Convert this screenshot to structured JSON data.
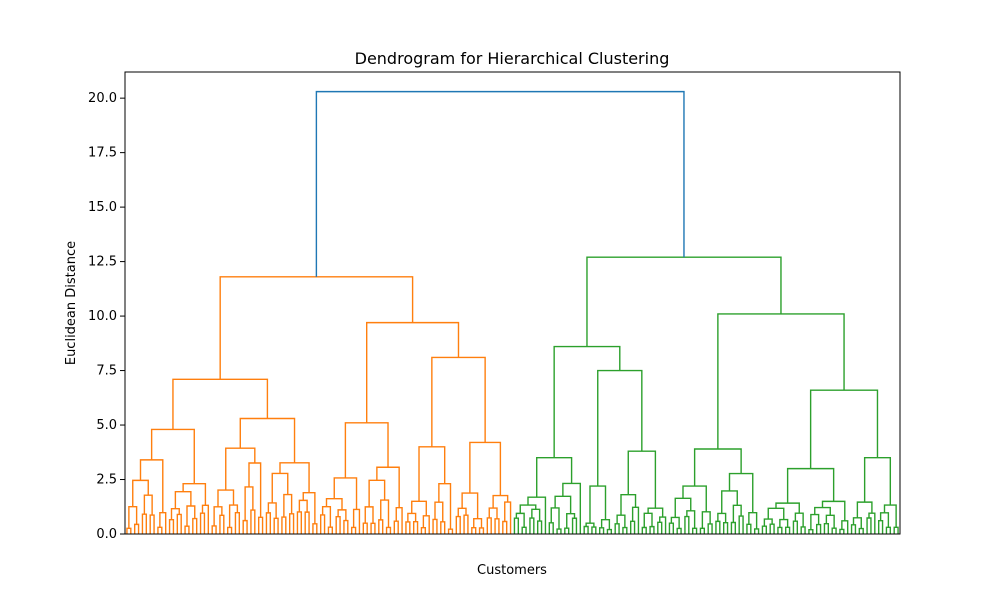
{
  "chart_data": {
    "type": "dendrogram",
    "title": "Dendrogram for Hierarchical Clustering",
    "xlabel": "Customers",
    "ylabel": "Euclidean Distance",
    "ylim": [
      0,
      21.2
    ],
    "yticks": [
      0.0,
      2.5,
      5.0,
      7.5,
      10.0,
      12.5,
      15.0,
      17.5,
      20.0
    ],
    "grid": false,
    "leaf_count": 200,
    "colors": {
      "top_link": "#1f77b4",
      "cluster_1": "#ff7f0e",
      "cluster_2": "#2ca02c"
    },
    "clusters": [
      {
        "name": "cluster_1",
        "leaf_range": [
          0,
          99
        ],
        "merge_height": 11.8,
        "groups": [
          {
            "leaf_range": [
              0,
              49
            ],
            "merge_height": 7.1,
            "groups": [
              {
                "leaf_range": [
                  0,
                  21
                ],
                "merge_height": 4.8
              },
              {
                "leaf_range": [
                  22,
                  49
                ],
                "merge_height": 5.3
              }
            ]
          },
          {
            "leaf_range": [
              50,
              99
            ],
            "merge_height": 9.7,
            "groups": [
              {
                "leaf_range": [
                  50,
                  71
                ],
                "merge_height": 5.1
              },
              {
                "leaf_range": [
                  72,
                  99
                ],
                "merge_height": 8.1,
                "groups": [
                  {
                    "leaf_range": [
                      72,
                      84
                    ],
                    "merge_height": 4.0
                  },
                  {
                    "leaf_range": [
                      85,
                      99
                    ],
                    "merge_height": 4.2
                  }
                ]
              }
            ]
          }
        ]
      },
      {
        "name": "cluster_2",
        "leaf_range": [
          100,
          199
        ],
        "merge_height": 12.7,
        "groups": [
          {
            "leaf_range": [
              100,
              139
            ],
            "merge_height": 8.6,
            "groups": [
              {
                "leaf_range": [
                  100,
                  117
                ],
                "merge_height": 3.5
              },
              {
                "leaf_range": [
                  118,
                  139
                ],
                "merge_height": 7.5,
                "groups": [
                  {
                    "leaf_range": [
                      118,
                      125
                    ],
                    "merge_height": 2.2
                  },
                  {
                    "leaf_range": [
                      126,
                      139
                    ],
                    "merge_height": 3.8
                  }
                ]
              }
            ]
          },
          {
            "leaf_range": [
              140,
              199
            ],
            "merge_height": 10.1,
            "groups": [
              {
                "leaf_range": [
                  140,
                  163
                ],
                "merge_height": 3.9
              },
              {
                "leaf_range": [
                  164,
                  199
                ],
                "merge_height": 6.6,
                "groups": [
                  {
                    "leaf_range": [
                      164,
                      186
                    ],
                    "merge_height": 3.0
                  },
                  {
                    "leaf_range": [
                      187,
                      199
                    ],
                    "merge_height": 3.5
                  }
                ]
              }
            ]
          }
        ]
      }
    ],
    "root_merge_height": 20.3
  }
}
